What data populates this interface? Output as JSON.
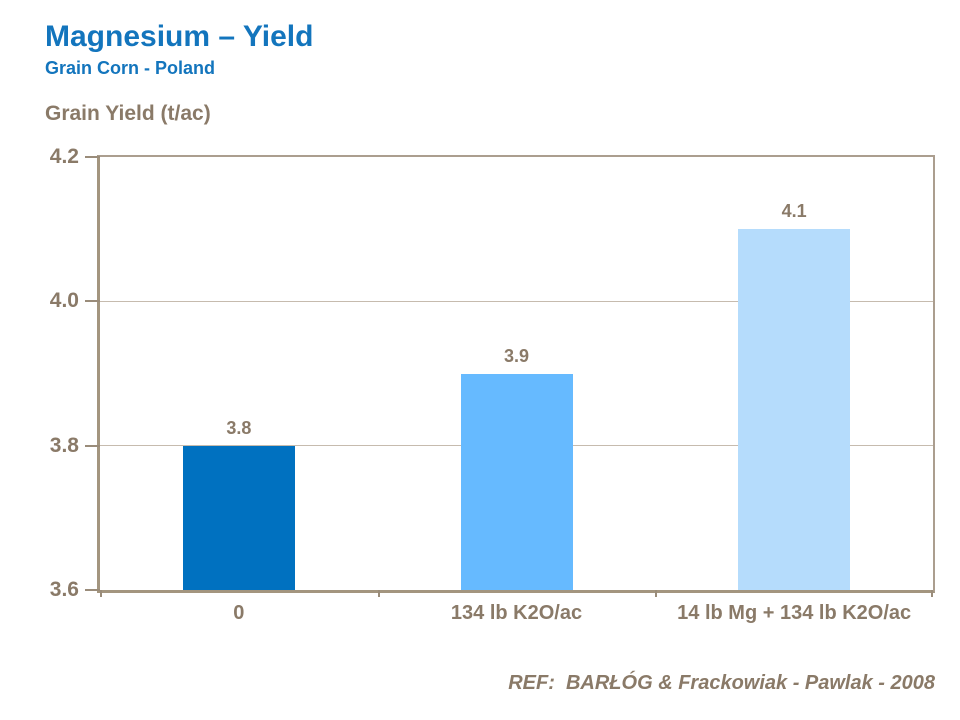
{
  "chart_data": {
    "type": "bar",
    "title": "Magnesium – Yield",
    "subtitle": "Grain Corn - Poland",
    "ylabel": "Grain Yield (t/ac)",
    "xlabel": "",
    "categories": [
      "0",
      "134 lb K2O/ac",
      "14 lb Mg + 134 lb K2O/ac"
    ],
    "values": [
      3.8,
      3.9,
      4.1
    ],
    "value_labels": [
      "3.8",
      "3.9",
      "4.1"
    ],
    "bar_colors": [
      "#0071c0",
      "#66baff",
      "#b5dcfc"
    ],
    "ylim": [
      3.6,
      4.2
    ],
    "y_tick_values": [
      3.6,
      3.8,
      4.0,
      4.2
    ],
    "y_tick_labels": [
      "3.6",
      "3.8",
      "4.0",
      "4.2"
    ],
    "grid": "horizontal-at-inner-ticks",
    "legend": "none",
    "source": "REF:  BARŁÓG & Frackowiak - Pawlak - 2008"
  },
  "colors": {
    "title_blue": "#1375bd",
    "text_brown": "#8a7a68",
    "axis_line": "#a3957f",
    "gridline": "#c6bbae",
    "background": "#ffffff",
    "bar_dark_blue": "#0071c0",
    "bar_medium_blue": "#66baff",
    "bar_light_blue": "#b5dcfc"
  }
}
